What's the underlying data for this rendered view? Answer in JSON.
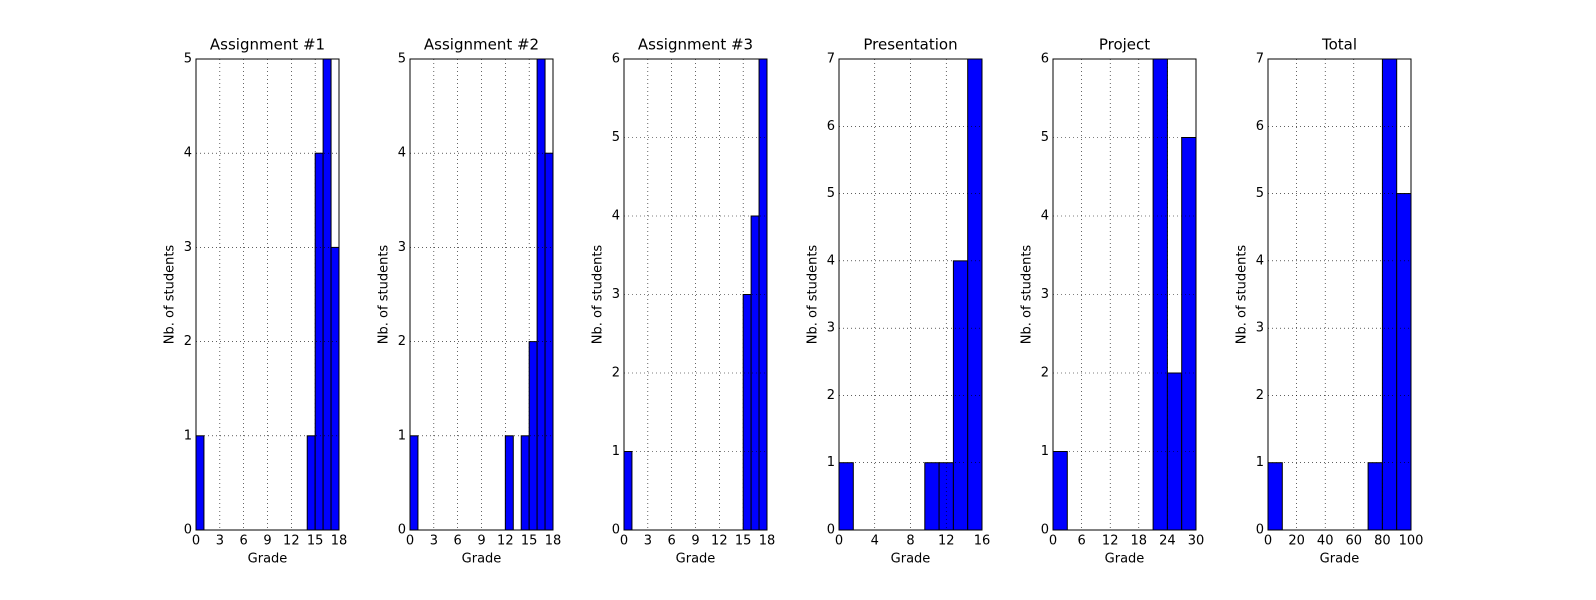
{
  "chart_data": [
    {
      "type": "histogram",
      "title": "Assignment #1",
      "x_label": "Grade",
      "y_label": "Nb. of students",
      "color": "#0000ff",
      "grid": true,
      "bins": [
        0,
        1,
        2,
        3,
        4,
        5,
        6,
        7,
        8,
        9,
        10,
        11,
        12,
        13,
        14,
        15,
        16,
        17,
        18
      ],
      "values": [
        1,
        0,
        0,
        0,
        0,
        0,
        0,
        0,
        0,
        0,
        0,
        0,
        0,
        0,
        1,
        4,
        5,
        3
      ],
      "xlim": [
        0,
        18
      ],
      "xticks": [
        0,
        3,
        6,
        9,
        12,
        15,
        18
      ],
      "ylim": [
        0,
        5
      ],
      "yticks": [
        0,
        1,
        2,
        3,
        4,
        5
      ]
    },
    {
      "type": "histogram",
      "title": "Assignment #2",
      "x_label": "Grade",
      "y_label": "Nb. of students",
      "color": "#0000ff",
      "grid": true,
      "bins": [
        0,
        1,
        2,
        3,
        4,
        5,
        6,
        7,
        8,
        9,
        10,
        11,
        12,
        13,
        14,
        15,
        16,
        17,
        18
      ],
      "values": [
        1,
        0,
        0,
        0,
        0,
        0,
        0,
        0,
        0,
        0,
        0,
        0,
        1,
        0,
        1,
        2,
        5,
        4
      ],
      "xlim": [
        0,
        18
      ],
      "xticks": [
        0,
        3,
        6,
        9,
        12,
        15,
        18
      ],
      "ylim": [
        0,
        5
      ],
      "yticks": [
        0,
        1,
        2,
        3,
        4,
        5
      ]
    },
    {
      "type": "histogram",
      "title": "Assignment #3",
      "x_label": "Grade",
      "y_label": "Nb. of students",
      "color": "#0000ff",
      "grid": true,
      "bins": [
        0,
        1,
        2,
        3,
        4,
        5,
        6,
        7,
        8,
        9,
        10,
        11,
        12,
        13,
        14,
        15,
        16,
        17,
        18
      ],
      "values": [
        1,
        0,
        0,
        0,
        0,
        0,
        0,
        0,
        0,
        0,
        0,
        0,
        0,
        0,
        0,
        3,
        4,
        6
      ],
      "xlim": [
        0,
        18
      ],
      "xticks": [
        0,
        3,
        6,
        9,
        12,
        15,
        18
      ],
      "ylim": [
        0,
        6
      ],
      "yticks": [
        0,
        1,
        2,
        3,
        4,
        5,
        6
      ]
    },
    {
      "type": "histogram",
      "title": "Presentation",
      "x_label": "Grade",
      "y_label": "Nb. of students",
      "color": "#0000ff",
      "grid": true,
      "bins": [
        0,
        1.6,
        3.2,
        4.8,
        6.4,
        8,
        9.6,
        11.2,
        12.8,
        14.4,
        16
      ],
      "values": [
        1,
        0,
        0,
        0,
        0,
        0,
        1,
        1,
        4,
        7
      ],
      "xlim": [
        0,
        16
      ],
      "xticks": [
        0,
        4,
        8,
        12,
        16
      ],
      "ylim": [
        0,
        7
      ],
      "yticks": [
        0,
        1,
        2,
        3,
        4,
        5,
        6,
        7
      ]
    },
    {
      "type": "histogram",
      "title": "Project",
      "x_label": "Grade",
      "y_label": "Nb. of students",
      "color": "#0000ff",
      "grid": true,
      "bins": [
        0,
        3,
        6,
        9,
        12,
        15,
        18,
        21,
        24,
        27,
        30
      ],
      "values": [
        1,
        0,
        0,
        0,
        0,
        0,
        0,
        6,
        2,
        5
      ],
      "xlim": [
        0,
        30
      ],
      "xticks": [
        0,
        6,
        12,
        18,
        24,
        30
      ],
      "ylim": [
        0,
        6
      ],
      "yticks": [
        0,
        1,
        2,
        3,
        4,
        5,
        6
      ]
    },
    {
      "type": "histogram",
      "title": "Total",
      "x_label": "Grade",
      "y_label": "Nb. of students",
      "color": "#0000ff",
      "grid": true,
      "bins": [
        0,
        10,
        20,
        30,
        40,
        50,
        60,
        70,
        80,
        90,
        100
      ],
      "values": [
        1,
        0,
        0,
        0,
        0,
        0,
        0,
        1,
        7,
        5
      ],
      "xlim": [
        0,
        100
      ],
      "xticks": [
        0,
        20,
        40,
        60,
        80,
        100
      ],
      "ylim": [
        0,
        7
      ],
      "yticks": [
        0,
        1,
        2,
        3,
        4,
        5,
        6,
        7
      ]
    }
  ]
}
